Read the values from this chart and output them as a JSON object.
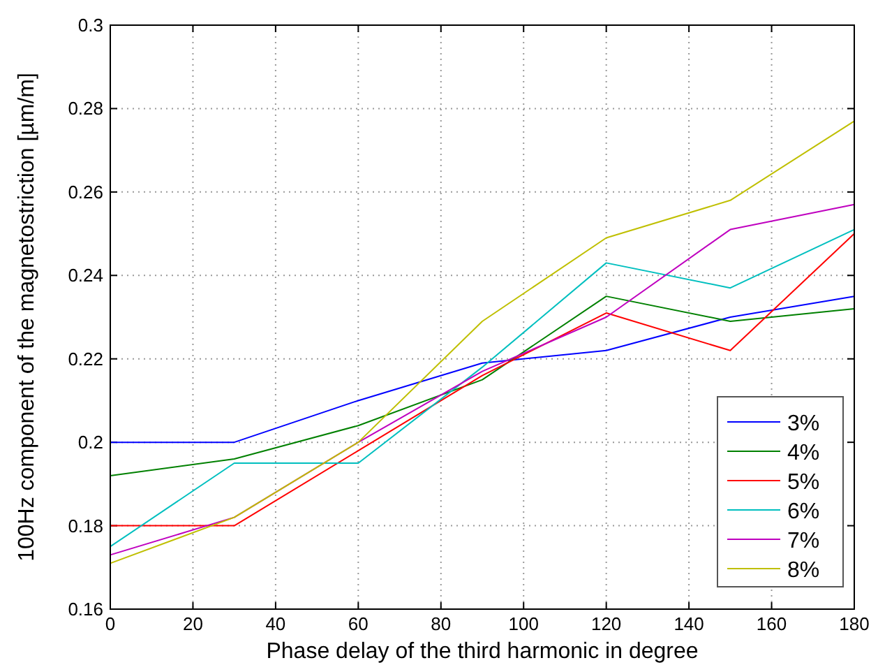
{
  "chart_data": {
    "type": "line",
    "xlabel": "Phase delay of the third harmonic in degree",
    "ylabel": "100Hz component of the magnetostriction [µm/m]",
    "x": [
      0,
      30,
      60,
      90,
      120,
      150,
      180
    ],
    "series": [
      {
        "name": "3%",
        "color": "#0000ff",
        "values": [
          0.2,
          0.2,
          0.21,
          0.219,
          0.222,
          0.23,
          0.235
        ]
      },
      {
        "name": "4%",
        "color": "#008000",
        "values": [
          0.192,
          0.196,
          0.204,
          0.215,
          0.235,
          0.229,
          0.232
        ]
      },
      {
        "name": "5%",
        "color": "#ff0000",
        "values": [
          0.18,
          0.18,
          0.198,
          0.216,
          0.231,
          0.222,
          0.25
        ]
      },
      {
        "name": "6%",
        "color": "#00bfbf",
        "values": [
          0.175,
          0.195,
          0.195,
          0.218,
          0.243,
          0.237,
          0.251
        ]
      },
      {
        "name": "7%",
        "color": "#bf00bf",
        "values": [
          0.173,
          0.182,
          0.2,
          0.217,
          0.23,
          0.251,
          0.257
        ]
      },
      {
        "name": "8%",
        "color": "#bfbf00",
        "values": [
          0.171,
          0.182,
          0.2,
          0.229,
          0.249,
          0.258,
          0.277
        ]
      }
    ],
    "xlim": [
      0,
      180
    ],
    "xticks": [
      0,
      20,
      40,
      60,
      80,
      100,
      120,
      140,
      160,
      180
    ],
    "ylim": [
      0.16,
      0.3
    ],
    "yticks": [
      0.16,
      0.18,
      0.2,
      0.22,
      0.24,
      0.26,
      0.28,
      0.3
    ],
    "grid": true,
    "legend": "bottom right",
    "marker": "none",
    "line_style": "solid"
  }
}
